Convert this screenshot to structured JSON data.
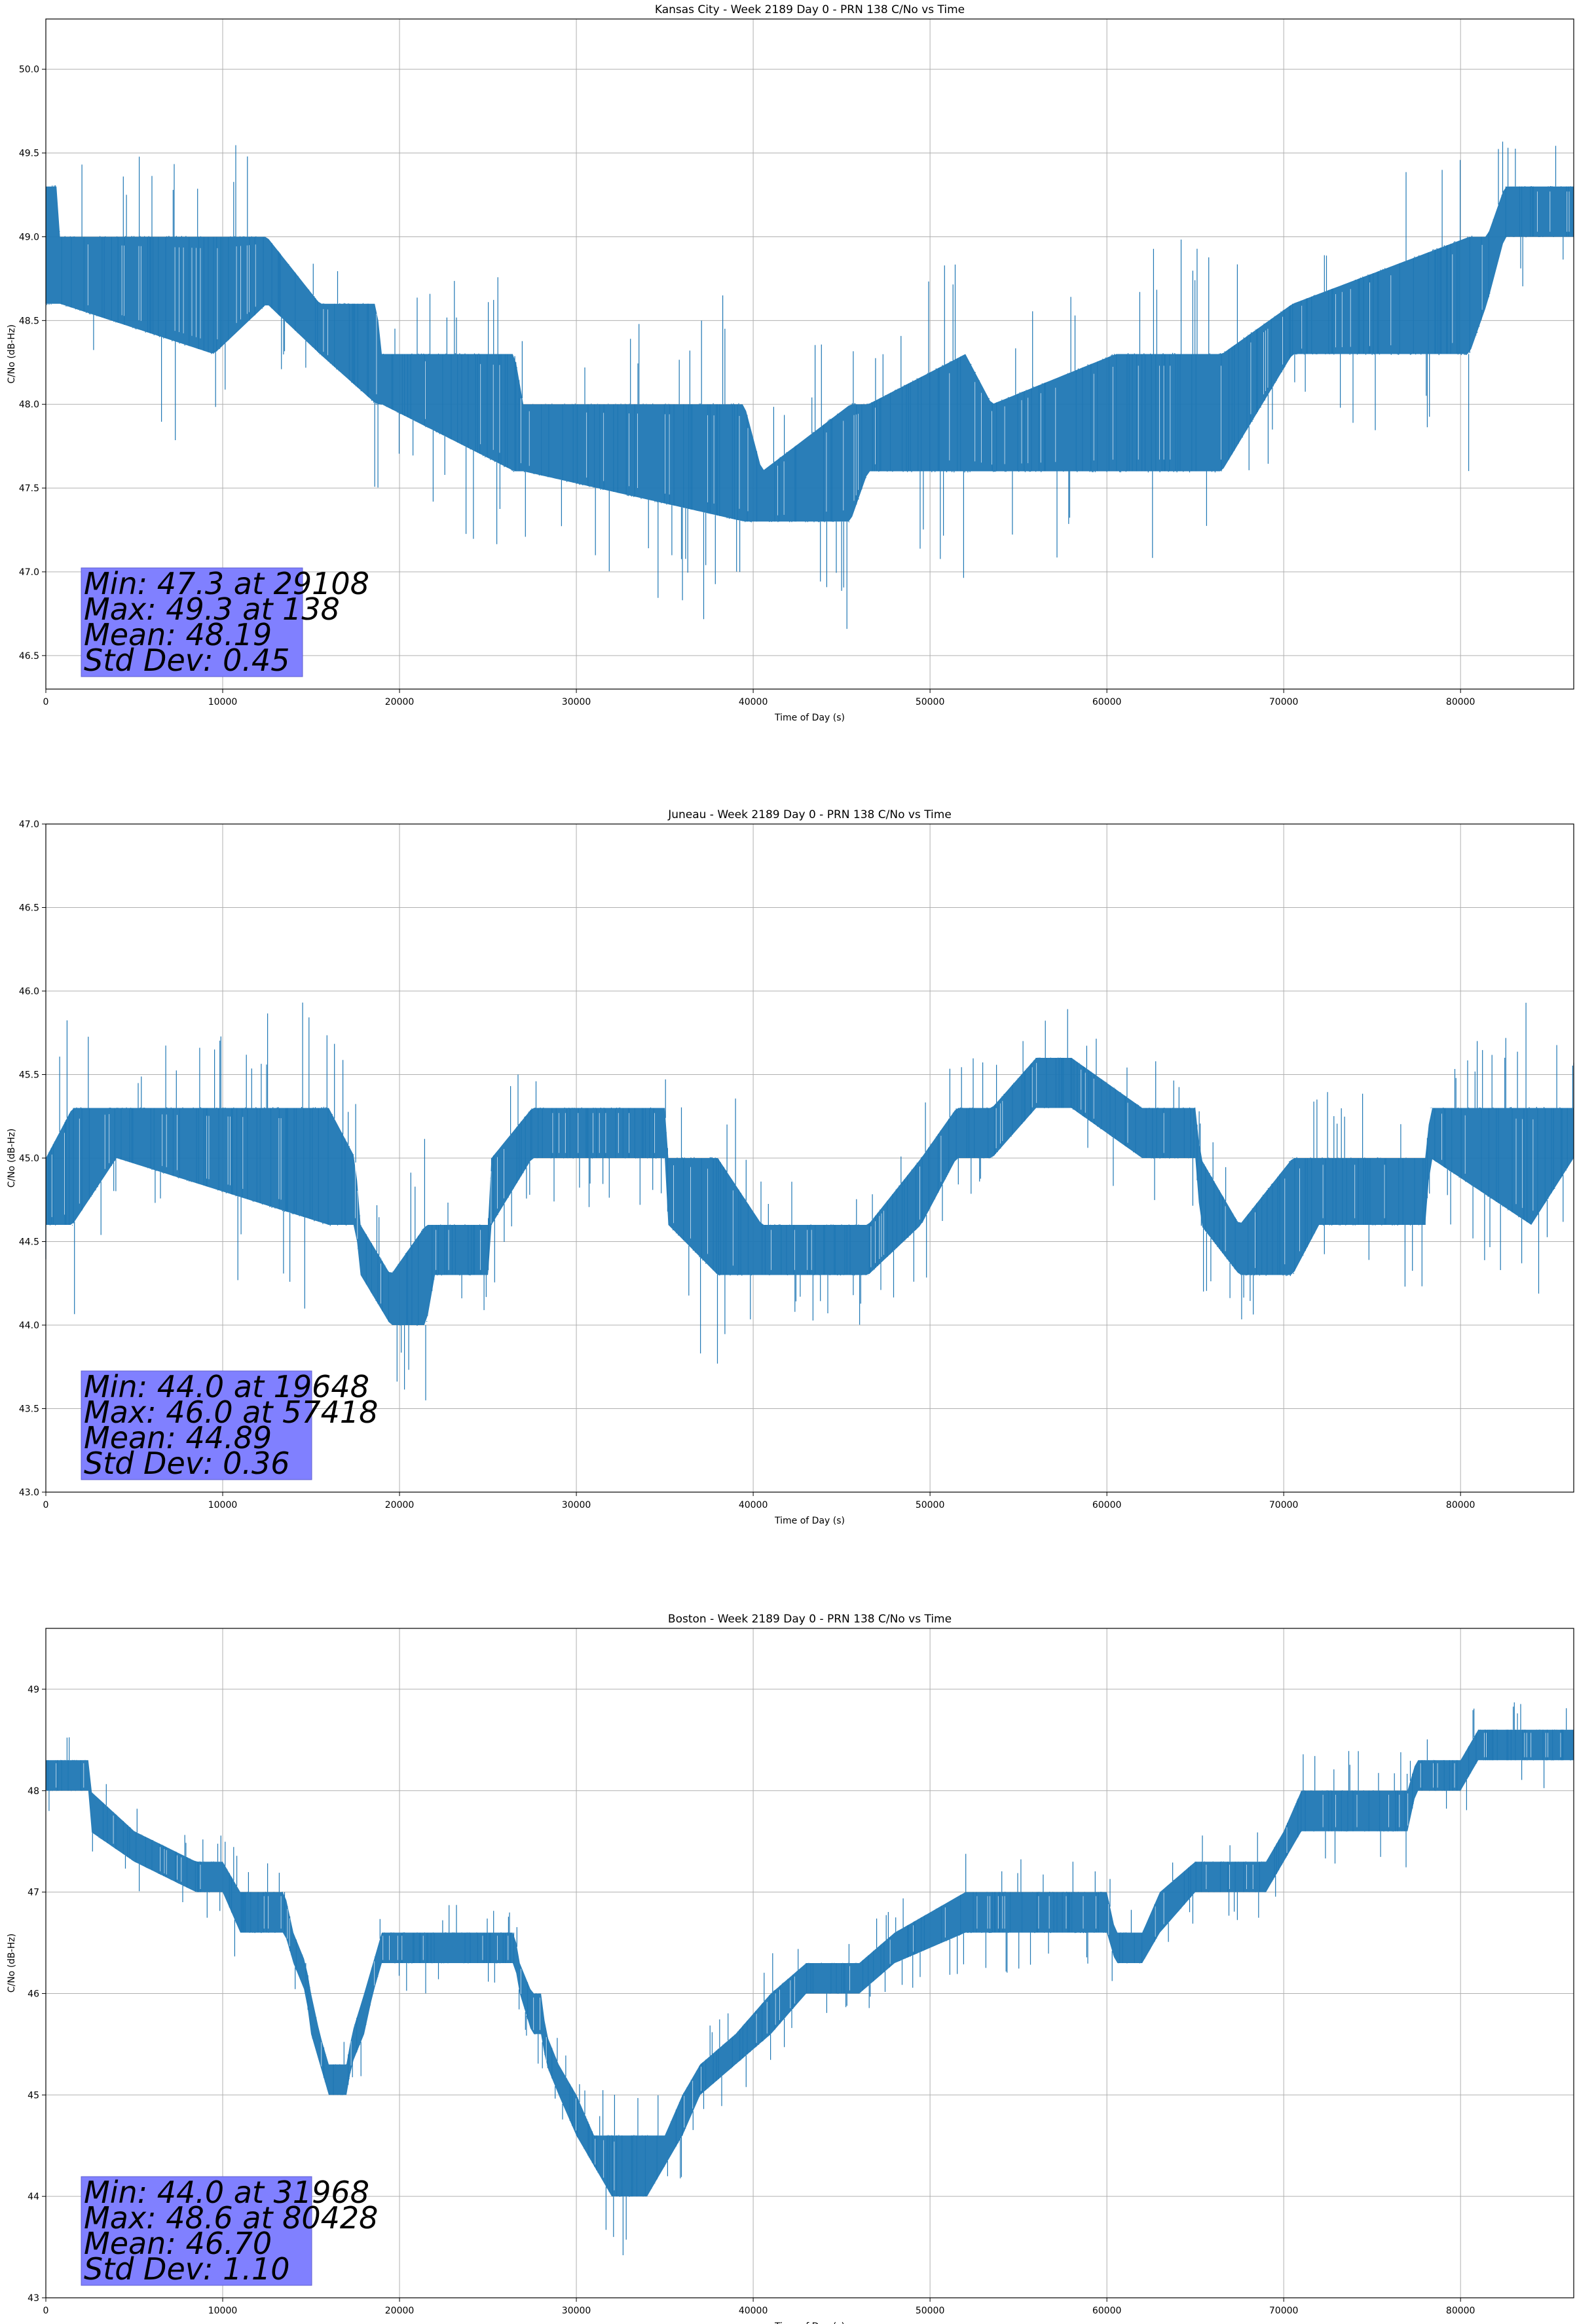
{
  "chart_data": [
    {
      "type": "line",
      "title": "Kansas City - Week 2189 Day 0 - PRN 138 C/No vs Time",
      "xlabel": "Time of Day (s)",
      "ylabel": "C/No (dB-Hz)",
      "xlim": [
        0,
        86400
      ],
      "ylim": [
        46.3,
        50.3
      ],
      "xticks": [
        0,
        10000,
        20000,
        30000,
        40000,
        50000,
        60000,
        70000,
        80000
      ],
      "yticks": [
        "46.5",
        "47.0",
        "47.5",
        "48.0",
        "48.5",
        "49.0",
        "49.5",
        "50.0"
      ],
      "grid": true,
      "line_color": "#1f77b4",
      "band": [
        [
          0,
          48.6,
          49.3
        ],
        [
          600,
          48.6,
          49.3
        ],
        [
          800,
          48.6,
          49.0
        ],
        [
          9500,
          48.3,
          49.0
        ],
        [
          12500,
          48.6,
          49.0
        ],
        [
          15500,
          48.3,
          48.6
        ],
        [
          18700,
          48.0,
          48.6
        ],
        [
          19000,
          48.0,
          48.3
        ],
        [
          26500,
          47.6,
          48.3
        ],
        [
          27000,
          47.6,
          48.0
        ],
        [
          39500,
          47.3,
          48.0
        ],
        [
          40500,
          47.3,
          47.6
        ],
        [
          45500,
          47.3,
          48.0
        ],
        [
          46500,
          47.6,
          48.0
        ],
        [
          52000,
          47.6,
          48.3
        ],
        [
          53500,
          47.6,
          48.0
        ],
        [
          60500,
          47.6,
          48.3
        ],
        [
          66500,
          47.6,
          48.3
        ],
        [
          70500,
          48.3,
          48.6
        ],
        [
          80500,
          48.3,
          49.0
        ],
        [
          81500,
          48.6,
          49.0
        ],
        [
          82500,
          49.0,
          49.3
        ],
        [
          86400,
          49.0,
          49.3
        ]
      ],
      "stats": {
        "min_value": 47.3,
        "min_time": 29108,
        "max_value": 49.3,
        "max_time": 138,
        "mean": 48.19,
        "std_dev": 0.45
      },
      "stats_text": [
        "Min: 47.3 at 29108",
        "Max: 49.3 at 138",
        "Mean: 48.19",
        "Std Dev: 0.45"
      ]
    },
    {
      "type": "line",
      "title": "Juneau - Week 2189 Day 0 - PRN 138 C/No vs Time",
      "xlabel": "Time of Day (s)",
      "ylabel": "C/No (dB-Hz)",
      "xlim": [
        0,
        86400
      ],
      "ylim": [
        43.0,
        47.0
      ],
      "xticks": [
        0,
        10000,
        20000,
        30000,
        40000,
        50000,
        60000,
        70000,
        80000
      ],
      "yticks": [
        "43.0",
        "43.5",
        "44.0",
        "44.5",
        "45.0",
        "45.5",
        "46.0",
        "46.5",
        "47.0"
      ],
      "grid": true,
      "line_color": "#1f77b4",
      "band": [
        [
          0,
          44.6,
          45.0
        ],
        [
          1500,
          44.6,
          45.3
        ],
        [
          4000,
          45.0,
          45.3
        ],
        [
          16000,
          44.6,
          45.3
        ],
        [
          17500,
          44.6,
          45.0
        ],
        [
          17800,
          44.3,
          44.6
        ],
        [
          19500,
          44.0,
          44.3
        ],
        [
          21500,
          44.0,
          44.6
        ],
        [
          22000,
          44.3,
          44.6
        ],
        [
          25000,
          44.3,
          44.6
        ],
        [
          25200,
          44.6,
          45.0
        ],
        [
          27500,
          45.0,
          45.3
        ],
        [
          29500,
          45.0,
          45.3
        ],
        [
          35000,
          45.0,
          45.3
        ],
        [
          35200,
          44.6,
          45.0
        ],
        [
          38000,
          44.3,
          45.0
        ],
        [
          40500,
          44.3,
          44.6
        ],
        [
          46500,
          44.3,
          44.6
        ],
        [
          49500,
          44.6,
          45.0
        ],
        [
          51500,
          45.0,
          45.3
        ],
        [
          53500,
          45.0,
          45.3
        ],
        [
          56000,
          45.3,
          45.6
        ],
        [
          58000,
          45.3,
          45.6
        ],
        [
          62000,
          45.0,
          45.3
        ],
        [
          65000,
          45.0,
          45.3
        ],
        [
          65300,
          44.6,
          45.0
        ],
        [
          67500,
          44.3,
          44.6
        ],
        [
          70500,
          44.3,
          45.0
        ],
        [
          72000,
          44.6,
          45.0
        ],
        [
          78000,
          44.6,
          45.0
        ],
        [
          78300,
          45.0,
          45.3
        ],
        [
          84000,
          44.6,
          45.3
        ],
        [
          86400,
          45.0,
          45.3
        ]
      ],
      "stats": {
        "min_value": 44.0,
        "min_time": 19648,
        "max_value": 46.0,
        "max_time": 57418,
        "mean": 44.89,
        "std_dev": 0.36
      },
      "stats_text": [
        "Min: 44.0 at 19648",
        "Max: 46.0 at 57418",
        "Mean: 44.89",
        "Std Dev: 0.36"
      ]
    },
    {
      "type": "line",
      "title": "Boston - Week 2189 Day 0 - PRN 138 C/No vs Time",
      "xlabel": "Time of Day (s)",
      "ylabel": "C/No (dB-Hz)",
      "xlim": [
        0,
        86400
      ],
      "ylim": [
        43.0,
        49.6
      ],
      "xticks": [
        0,
        10000,
        20000,
        30000,
        40000,
        50000,
        60000,
        70000,
        80000
      ],
      "yticks": [
        "43",
        "44",
        "45",
        "46",
        "47",
        "48",
        "49"
      ],
      "grid": true,
      "line_color": "#1f77b4",
      "band": [
        [
          0,
          48.0,
          48.3
        ],
        [
          2400,
          48.0,
          48.3
        ],
        [
          2500,
          47.6,
          48.0
        ],
        [
          5000,
          47.3,
          47.6
        ],
        [
          8500,
          47.0,
          47.3
        ],
        [
          10000,
          47.0,
          47.3
        ],
        [
          11000,
          46.6,
          47.0
        ],
        [
          13500,
          46.6,
          47.0
        ],
        [
          14000,
          46.3,
          46.6
        ],
        [
          14700,
          46.0,
          46.3
        ],
        [
          15000,
          45.6,
          46.0
        ],
        [
          15500,
          45.3,
          45.6
        ],
        [
          16000,
          45.0,
          45.3
        ],
        [
          17000,
          45.0,
          45.3
        ],
        [
          17300,
          45.3,
          45.6
        ],
        [
          18000,
          45.6,
          46.0
        ],
        [
          18500,
          46.0,
          46.3
        ],
        [
          19000,
          46.3,
          46.6
        ],
        [
          20000,
          46.3,
          46.6
        ],
        [
          22000,
          46.3,
          46.6
        ],
        [
          25000,
          46.3,
          46.6
        ],
        [
          26500,
          46.3,
          46.6
        ],
        [
          26800,
          46.0,
          46.3
        ],
        [
          27500,
          45.6,
          46.0
        ],
        [
          28000,
          45.6,
          46.0
        ],
        [
          28300,
          45.3,
          45.6
        ],
        [
          29000,
          45.0,
          45.3
        ],
        [
          30000,
          44.6,
          45.0
        ],
        [
          31000,
          44.3,
          44.6
        ],
        [
          32000,
          44.0,
          44.6
        ],
        [
          34000,
          44.0,
          44.6
        ],
        [
          35000,
          44.3,
          44.6
        ],
        [
          36000,
          44.6,
          45.0
        ],
        [
          37000,
          45.0,
          45.3
        ],
        [
          39000,
          45.3,
          45.6
        ],
        [
          41000,
          45.6,
          46.0
        ],
        [
          43000,
          46.0,
          46.3
        ],
        [
          46000,
          46.0,
          46.3
        ],
        [
          48000,
          46.3,
          46.6
        ],
        [
          52000,
          46.6,
          47.0
        ],
        [
          60000,
          46.6,
          47.0
        ],
        [
          60500,
          46.3,
          46.6
        ],
        [
          62000,
          46.3,
          46.6
        ],
        [
          63000,
          46.6,
          47.0
        ],
        [
          65000,
          47.0,
          47.3
        ],
        [
          69000,
          47.0,
          47.3
        ],
        [
          70000,
          47.3,
          47.6
        ],
        [
          71000,
          47.6,
          48.0
        ],
        [
          77000,
          47.6,
          48.0
        ],
        [
          77500,
          48.0,
          48.3
        ],
        [
          80000,
          48.0,
          48.3
        ],
        [
          81000,
          48.3,
          48.6
        ],
        [
          86400,
          48.3,
          48.6
        ]
      ],
      "stats": {
        "min_value": 44.0,
        "min_time": 31968,
        "max_value": 48.6,
        "max_time": 80428,
        "mean": 46.7,
        "std_dev": 1.1
      },
      "stats_text": [
        "Min: 44.0 at 31968",
        "Max: 48.6 at 80428",
        "Mean: 46.70",
        "Std Dev: 1.10"
      ]
    }
  ]
}
